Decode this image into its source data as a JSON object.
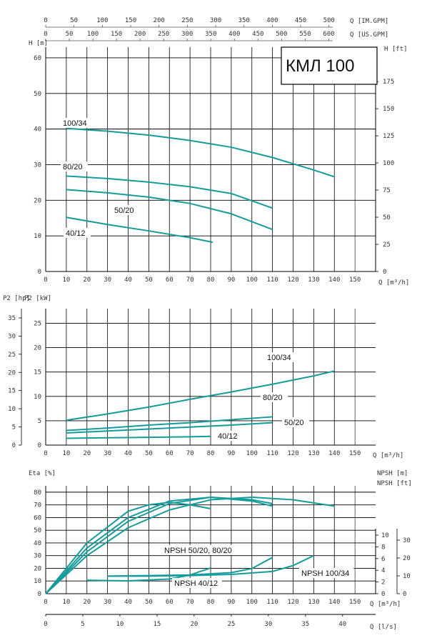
{
  "title": "КМЛ 100",
  "accent_color": "#169b9b",
  "top_axes": {
    "imp_gpm": {
      "unit": "Q [IM.GPM]",
      "ticks": [
        0,
        50,
        100,
        150,
        200,
        250,
        300,
        350,
        400,
        450,
        500
      ]
    },
    "us_gpm": {
      "unit": "Q [US.GPM]",
      "ticks": [
        0,
        50,
        100,
        150,
        200,
        250,
        300,
        350,
        400,
        450,
        500,
        550,
        600
      ]
    }
  },
  "chart_data": [
    {
      "type": "line",
      "name": "head",
      "xlabel": "Q [m³/h]",
      "ylabel": "H [m]",
      "ylabel_right": "H [ft]",
      "x_ticks": [
        0,
        10,
        20,
        30,
        40,
        50,
        60,
        70,
        80,
        90,
        100,
        110,
        120,
        130,
        140,
        150
      ],
      "y_ticks": [
        0,
        10,
        20,
        30,
        40,
        50,
        60
      ],
      "y_ticks_right": [
        0,
        25,
        50,
        75,
        100,
        125,
        150,
        175
      ],
      "xlim": [
        0,
        160
      ],
      "ylim": [
        0,
        63
      ],
      "series": [
        {
          "name": "100/34",
          "x": [
            10,
            30,
            50,
            70,
            90,
            110,
            130,
            140
          ],
          "y": [
            40.2,
            39.4,
            38.3,
            36.8,
            34.9,
            32.0,
            28.5,
            26.6
          ]
        },
        {
          "name": "80/20",
          "x": [
            10,
            30,
            50,
            70,
            90,
            110
          ],
          "y": [
            26.8,
            26.1,
            25.1,
            23.8,
            21.9,
            17.8
          ]
        },
        {
          "name": "50/20",
          "x": [
            10,
            30,
            50,
            70,
            90,
            110
          ],
          "y": [
            23.0,
            22.1,
            20.9,
            19.1,
            16.2,
            11.8
          ]
        },
        {
          "name": "40/12",
          "x": [
            10,
            30,
            50,
            70,
            81
          ],
          "y": [
            15.2,
            13.2,
            11.4,
            9.5,
            8.2
          ]
        }
      ]
    },
    {
      "type": "line",
      "name": "power",
      "xlabel": "Q [m³/h]",
      "ylabel": "P2 [kW]",
      "ylabel_left": "P2 [hp]",
      "x_ticks": [
        0,
        10,
        20,
        30,
        40,
        50,
        60,
        70,
        80,
        90,
        100,
        110,
        120,
        130,
        140,
        150
      ],
      "y_ticks": [
        0,
        5,
        10,
        15,
        20,
        25
      ],
      "y_ticks_hp": [
        0,
        5,
        10,
        15,
        20,
        25,
        30,
        35
      ],
      "xlim": [
        0,
        160
      ],
      "ylim": [
        0,
        28
      ],
      "series": [
        {
          "name": "100/34",
          "x": [
            10,
            30,
            50,
            70,
            90,
            110,
            130,
            140
          ],
          "y": [
            5.1,
            6.4,
            7.8,
            9.4,
            10.9,
            12.5,
            14.2,
            15.2
          ]
        },
        {
          "name": "80/20",
          "x": [
            10,
            30,
            50,
            70,
            90,
            110
          ],
          "y": [
            3.0,
            3.5,
            4.1,
            4.6,
            5.2,
            5.8
          ]
        },
        {
          "name": "50/20",
          "x": [
            10,
            30,
            50,
            70,
            90,
            110
          ],
          "y": [
            2.5,
            2.9,
            3.3,
            3.7,
            4.1,
            4.6
          ]
        },
        {
          "name": "40/12",
          "x": [
            10,
            30,
            50,
            70,
            80
          ],
          "y": [
            1.4,
            1.5,
            1.6,
            1.7,
            1.8
          ]
        }
      ]
    },
    {
      "type": "line",
      "name": "efficiency",
      "xlabel": "Q [m³/h]",
      "xlabel_ls": "Q [l/s]",
      "ylabel": "Eta [%]",
      "ylabel_npsh": "NPSH [m]",
      "ylabel_npsh_ft": "NPSH [ft]",
      "x_ticks": [
        0,
        10,
        20,
        30,
        40,
        50,
        60,
        70,
        80,
        90,
        100,
        110,
        120,
        130,
        140,
        150
      ],
      "x_ticks_ls": [
        0,
        5,
        10,
        15,
        20,
        25,
        30,
        35,
        40
      ],
      "y_ticks": [
        0,
        10,
        20,
        30,
        40,
        50,
        60,
        70,
        80
      ],
      "npsh_ticks": [
        0,
        2,
        4,
        6,
        8,
        10
      ],
      "npsh_ft_ticks": [
        0,
        10,
        20,
        30
      ],
      "xlim": [
        0,
        160
      ],
      "ylim": [
        0,
        85
      ],
      "series": [
        {
          "name": "100/34",
          "x": [
            0,
            20,
            40,
            60,
            80,
            100,
            120,
            140
          ],
          "y": [
            0,
            30,
            52,
            66,
            74,
            76,
            74,
            69
          ]
        },
        {
          "name": "80/20",
          "x": [
            0,
            20,
            40,
            60,
            80,
            100,
            110
          ],
          "y": [
            0,
            33,
            57,
            71,
            76,
            74,
            71
          ]
        },
        {
          "name": "50/20",
          "x": [
            0,
            20,
            40,
            60,
            80,
            100,
            110
          ],
          "y": [
            0,
            36,
            60,
            73,
            76,
            73,
            69
          ]
        },
        {
          "name": "40/12",
          "x": [
            0,
            20,
            40,
            50,
            60,
            70,
            80
          ],
          "y": [
            0,
            40,
            65,
            70,
            72,
            70,
            67
          ]
        }
      ],
      "npsh_series": [
        {
          "name": "NPSH 100/34",
          "x": [
            30,
            50,
            70,
            90,
            110,
            120,
            130
          ],
          "y": [
            3.0,
            3.0,
            3.1,
            3.3,
            3.8,
            4.8,
            6.5
          ]
        },
        {
          "name": "NPSH 50/20, 80/20",
          "x": [
            30,
            50,
            70,
            90,
            100,
            110
          ],
          "y": [
            3.0,
            3.1,
            3.2,
            3.6,
            4.3,
            6.2
          ]
        },
        {
          "name": "NPSH 40/12",
          "x": [
            20,
            40,
            60,
            70,
            80
          ],
          "y": [
            2.3,
            2.2,
            2.5,
            3.2,
            4.4
          ]
        }
      ],
      "annotations": [
        "NPSH 50/20, 80/20",
        "NPSH 100/34",
        "NPSH 40/12"
      ]
    }
  ]
}
